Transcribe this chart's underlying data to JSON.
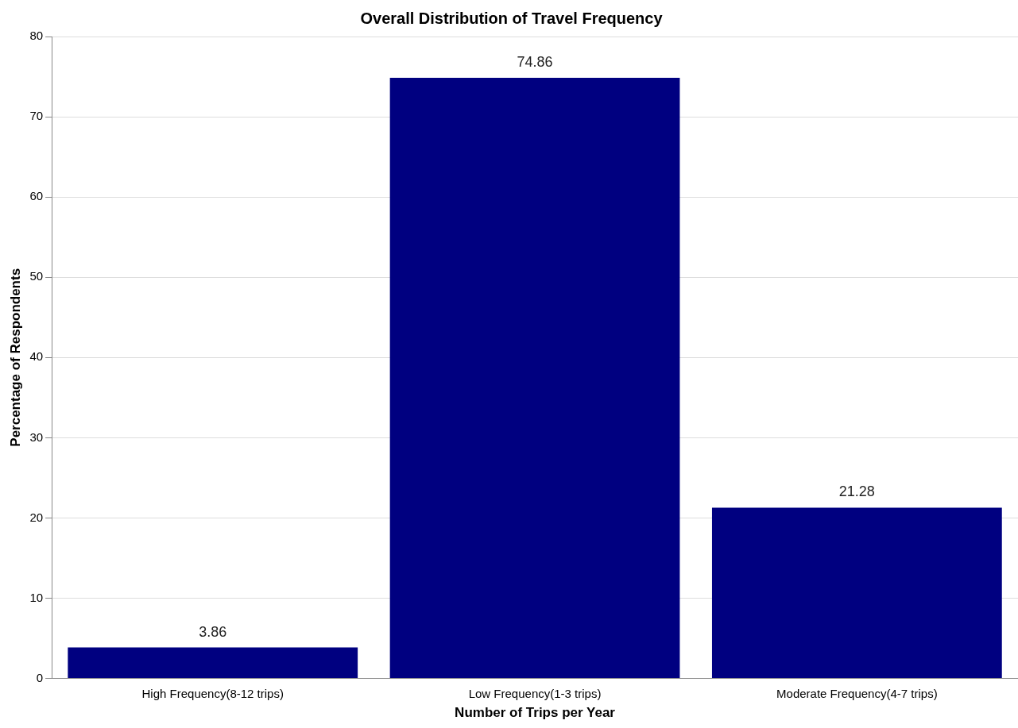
{
  "chart_data": {
    "type": "bar",
    "title": "Overall Distribution of Travel Frequency",
    "xlabel": "Number of Trips per Year",
    "ylabel": "Percentage of Respondents",
    "categories": [
      "High Frequency(8-12 trips)",
      "Low Frequency(1-3 trips)",
      "Moderate Frequency(4-7 trips)"
    ],
    "values": [
      3.86,
      74.86,
      21.28
    ],
    "color": "#000080",
    "ylim": [
      0,
      80
    ],
    "yticks": [
      0,
      10,
      20,
      30,
      40,
      50,
      60,
      70,
      80
    ],
    "grid": "y",
    "data_labels": true,
    "legend": false
  }
}
